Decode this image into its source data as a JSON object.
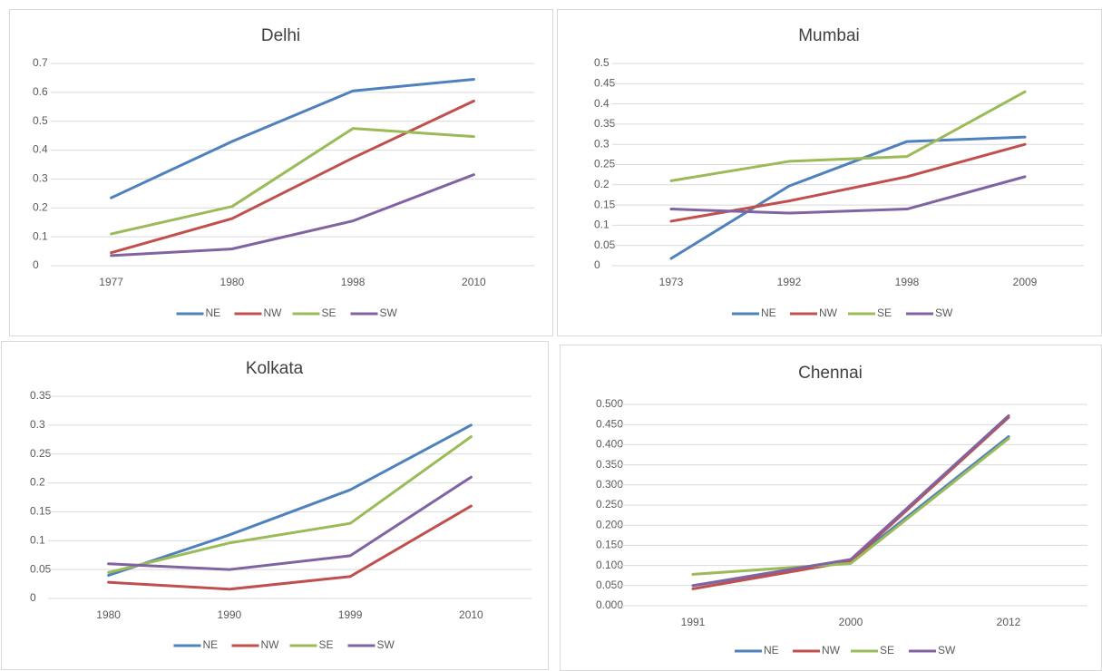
{
  "chart_data": [
    {
      "type": "line",
      "title": "Delhi",
      "categories": [
        "1977",
        "1980",
        "1998",
        "2010"
      ],
      "series": [
        {
          "name": "NE",
          "color": "#4f81bd",
          "values": [
            0.235,
            0.43,
            0.605,
            0.645
          ]
        },
        {
          "name": "NW",
          "color": "#c0504d",
          "values": [
            0.045,
            0.163,
            0.373,
            0.57
          ]
        },
        {
          "name": "SE",
          "color": "#9bbb59",
          "values": [
            0.11,
            0.205,
            0.475,
            0.447
          ]
        },
        {
          "name": "SW",
          "color": "#8064a2",
          "values": [
            0.035,
            0.058,
            0.155,
            0.315
          ]
        }
      ],
      "ylim": [
        0,
        0.7
      ],
      "yticks": [
        0,
        0.1,
        0.2,
        0.3,
        0.4,
        0.5,
        0.6,
        0.7
      ],
      "grid": true,
      "legend": "bottom"
    },
    {
      "type": "line",
      "title": "Mumbai",
      "categories": [
        "1973",
        "1992",
        "1998",
        "2009"
      ],
      "series": [
        {
          "name": "NE",
          "color": "#4f81bd",
          "values": [
            0.018,
            0.197,
            0.307,
            0.318
          ]
        },
        {
          "name": "NW",
          "color": "#c0504d",
          "values": [
            0.11,
            0.16,
            0.22,
            0.3
          ]
        },
        {
          "name": "SE",
          "color": "#9bbb59",
          "values": [
            0.21,
            0.258,
            0.27,
            0.43
          ]
        },
        {
          "name": "SW",
          "color": "#8064a2",
          "values": [
            0.14,
            0.13,
            0.14,
            0.22
          ]
        }
      ],
      "ylim": [
        0,
        0.5
      ],
      "yticks": [
        0,
        0.05,
        0.1,
        0.15,
        0.2,
        0.25,
        0.3,
        0.35,
        0.4,
        0.45,
        0.5
      ],
      "grid": true,
      "legend": "bottom"
    },
    {
      "type": "line",
      "title": "Kolkata",
      "categories": [
        "1980",
        "1990",
        "1999",
        "2010"
      ],
      "series": [
        {
          "name": "NE",
          "color": "#4f81bd",
          "values": [
            0.04,
            0.11,
            0.188,
            0.3
          ]
        },
        {
          "name": "NW",
          "color": "#c0504d",
          "values": [
            0.028,
            0.016,
            0.038,
            0.16
          ]
        },
        {
          "name": "SE",
          "color": "#9bbb59",
          "values": [
            0.045,
            0.096,
            0.13,
            0.28
          ]
        },
        {
          "name": "SW",
          "color": "#8064a2",
          "values": [
            0.06,
            0.05,
            0.074,
            0.21
          ]
        }
      ],
      "ylim": [
        0,
        0.35
      ],
      "yticks": [
        0,
        0.05,
        0.1,
        0.15,
        0.2,
        0.25,
        0.3,
        0.35
      ],
      "grid": true,
      "legend": "bottom"
    },
    {
      "type": "line",
      "title": "Chennai",
      "categories": [
        "1991",
        "2000",
        "2012"
      ],
      "series": [
        {
          "name": "NE",
          "color": "#4f81bd",
          "values": [
            0.05,
            0.11,
            0.42
          ]
        },
        {
          "name": "NW",
          "color": "#c0504d",
          "values": [
            0.042,
            0.11,
            0.468
          ]
        },
        {
          "name": "SE",
          "color": "#9bbb59",
          "values": [
            0.078,
            0.105,
            0.415
          ]
        },
        {
          "name": "SW",
          "color": "#8064a2",
          "values": [
            0.05,
            0.115,
            0.472
          ]
        }
      ],
      "ylim": [
        0,
        0.5
      ],
      "yticks": [
        {
          "value": 0,
          "label": "0.000"
        },
        {
          "value": 0.05,
          "label": "0.050"
        },
        {
          "value": 0.1,
          "label": "0.100"
        },
        {
          "value": 0.15,
          "label": "0.150"
        },
        {
          "value": 0.2,
          "label": "0.200"
        },
        {
          "value": 0.25,
          "label": "0.250"
        },
        {
          "value": 0.3,
          "label": "0.300"
        },
        {
          "value": 0.35,
          "label": "0.350"
        },
        {
          "value": 0.4,
          "label": "0.400"
        },
        {
          "value": 0.45,
          "label": "0.450"
        },
        {
          "value": 0.5,
          "label": "0.500"
        }
      ],
      "grid": true,
      "legend": "bottom"
    }
  ]
}
